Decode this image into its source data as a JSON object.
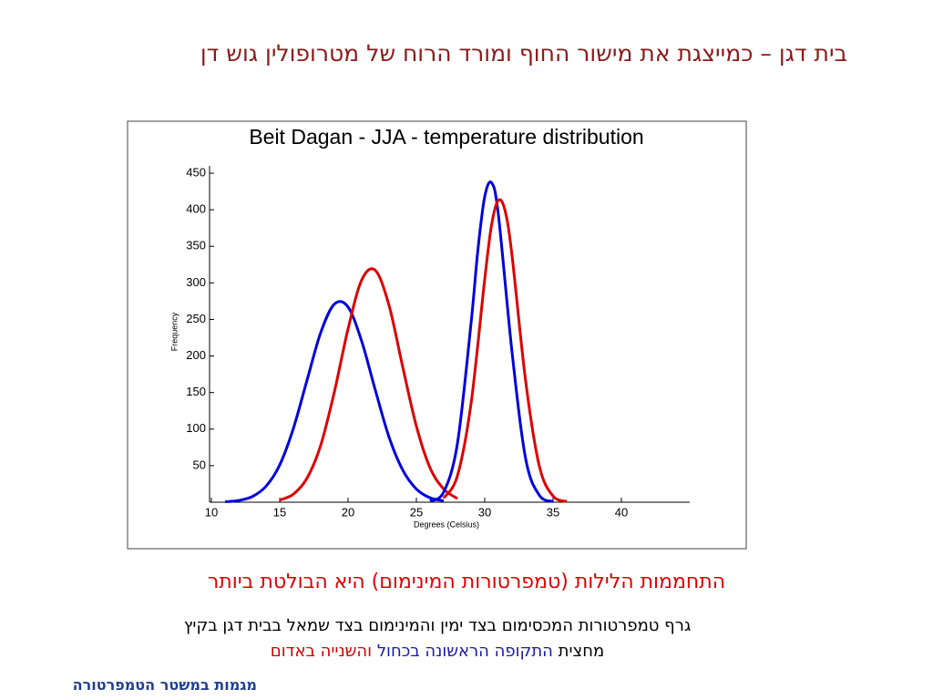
{
  "slide": {
    "title": "בית דגן – כמייצגת את מישור החוף ומורד הרוח של מטרופולין גוש דן",
    "highlight": "התחממות הלילות (טמפרטורות המינימום) היא הבולטת ביותר",
    "caption": "גרף טמפרטורות המכסימום בצד ימין והמינימום בצד שמאל בבית דגן בקיץ",
    "caption2": [
      {
        "text": "מחצית",
        "color": "#000000"
      },
      {
        "text": "התקופה הראשונה בכחול",
        "color": "#1a1aa6"
      },
      {
        "text": "והשנייה באדום",
        "color": "#d00000"
      }
    ],
    "footer": "מגמות במשטר הטמפרטורה"
  },
  "chart_data": {
    "type": "line",
    "title": "Beit Dagan - JJA - temperature distribution",
    "x_label": "Degrees (Celsius)",
    "y_label": "Frequency",
    "xlim": [
      10,
      45
    ],
    "xticks": [
      10,
      15,
      20,
      25,
      30,
      35,
      40
    ],
    "ylim": [
      0,
      460
    ],
    "yticks": [
      50,
      100,
      150,
      200,
      250,
      300,
      350,
      400,
      450
    ],
    "series": [
      {
        "color": "#0000dd",
        "x": [
          11,
          12,
          13,
          14,
          15,
          16,
          17,
          18,
          19,
          20,
          21,
          22,
          23,
          24,
          25,
          26,
          27
        ],
        "values": [
          0.6,
          2.4,
          7.8,
          21.9,
          51,
          101,
          167,
          232,
          271,
          267,
          220,
          153,
          89,
          44,
          18,
          6,
          2
        ]
      },
      {
        "color": "#dd0000",
        "x": [
          15,
          16,
          17,
          18,
          19,
          20,
          21,
          22,
          23,
          24,
          25,
          26,
          27,
          28
        ],
        "values": [
          3,
          11,
          33,
          78,
          151,
          237,
          304,
          317,
          269,
          185,
          104,
          47,
          18,
          5
        ]
      },
      {
        "color": "#0000dd",
        "x": [
          26,
          27,
          28,
          29,
          29.5,
          30,
          30.5,
          31,
          32,
          33,
          34,
          35
        ],
        "values": [
          1.4,
          14,
          80,
          245,
          345,
          418,
          437,
          393,
          205,
          59,
          9.5,
          1
        ]
      },
      {
        "color": "#dd0000",
        "x": [
          27,
          28,
          29,
          30,
          30.5,
          31,
          31.5,
          32,
          33,
          34,
          35,
          36
        ],
        "values": [
          5.7,
          36,
          135,
          305,
          379,
          413,
          398,
          337,
          165,
          49,
          8.5,
          1
        ]
      }
    ]
  }
}
